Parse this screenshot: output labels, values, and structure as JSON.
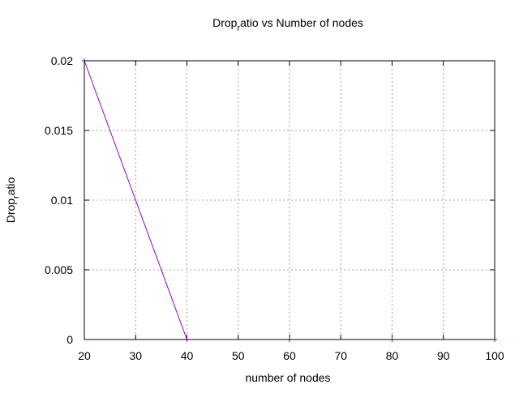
{
  "chart_data": {
    "type": "line",
    "title": {
      "base": "Drop",
      "subscript": "r",
      "rest": "atio vs Number of nodes"
    },
    "xlabel": "number of nodes",
    "ylabel": {
      "base": "Drop",
      "subscript": "r",
      "rest": "atio"
    },
    "xlim": [
      20,
      100
    ],
    "ylim": [
      0,
      0.02
    ],
    "x_ticks": [
      20,
      30,
      40,
      50,
      60,
      70,
      80,
      90,
      100
    ],
    "x_tick_labels": [
      "20",
      "30",
      "40",
      "50",
      "60",
      "70",
      "80",
      "90",
      "100"
    ],
    "y_ticks": [
      0,
      0.005,
      0.01,
      0.015,
      0.02
    ],
    "y_tick_labels": [
      "0",
      "0.005",
      "0.01",
      "0.015",
      "0.02"
    ],
    "grid": true,
    "series": [
      {
        "x": [
          20,
          40,
          60,
          80,
          100
        ],
        "y": [
          0.02,
          0,
          0,
          0,
          0
        ],
        "color": "#9400d3"
      }
    ]
  }
}
